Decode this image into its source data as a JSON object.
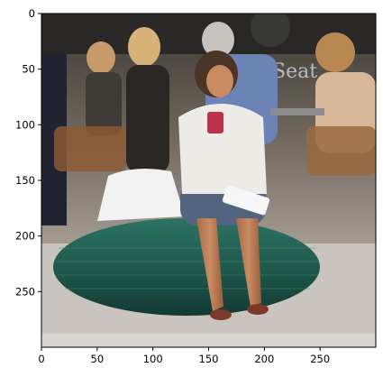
{
  "figure": {
    "photo_semantic": "woman seated on green ottoman sculpture drinking from a red cup at an outdoor cafe",
    "sign_text": "Seat",
    "colors": {
      "ottoman": "#1f5a4d",
      "cup": "#b8324a",
      "bag": "#f2f2f2",
      "pavement": "#c9c4bd",
      "frame": "#000000"
    }
  },
  "axes": {
    "x_ticks": [
      {
        "label": "0",
        "value": 0
      },
      {
        "label": "50",
        "value": 50
      },
      {
        "label": "100",
        "value": 100
      },
      {
        "label": "150",
        "value": 150
      },
      {
        "label": "200",
        "value": 200
      },
      {
        "label": "250",
        "value": 250
      }
    ],
    "y_ticks": [
      {
        "label": "0",
        "value": 0
      },
      {
        "label": "50",
        "value": 50
      },
      {
        "label": "100",
        "value": 100
      },
      {
        "label": "150",
        "value": 150
      },
      {
        "label": "200",
        "value": 200
      },
      {
        "label": "250",
        "value": 250
      }
    ],
    "xlim": [
      0,
      300
    ],
    "ylim": [
      300,
      0
    ]
  }
}
